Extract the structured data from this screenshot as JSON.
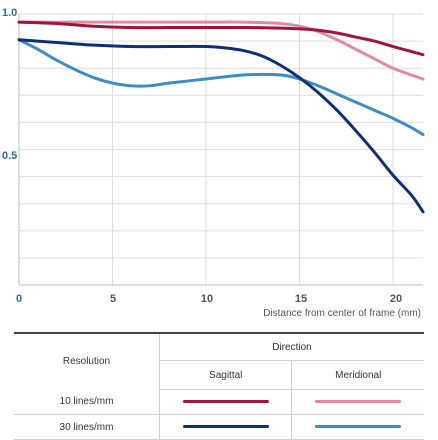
{
  "chart_data": {
    "type": "line",
    "title": "",
    "xlabel": "Distance from center of frame (mm)",
    "ylabel": "",
    "xlim": [
      0,
      21.6
    ],
    "ylim": [
      0,
      1.0
    ],
    "x_ticks": [
      "0",
      "5",
      "10",
      "15",
      "20"
    ],
    "y_ticks": [
      "1.0",
      "0.5"
    ],
    "grid": true,
    "series": [
      {
        "key": "sagittal_10",
        "color": "#a3143c",
        "points": [
          [
            0,
            0.97
          ],
          [
            2,
            0.965
          ],
          [
            4,
            0.955
          ],
          [
            6,
            0.95
          ],
          [
            8,
            0.95
          ],
          [
            10,
            0.95
          ],
          [
            12,
            0.95
          ],
          [
            14,
            0.948
          ],
          [
            15,
            0.945
          ],
          [
            16,
            0.94
          ],
          [
            17,
            0.93
          ],
          [
            18,
            0.915
          ],
          [
            19,
            0.9
          ],
          [
            20,
            0.88
          ],
          [
            21.6,
            0.85
          ]
        ]
      },
      {
        "key": "meridional_10",
        "color": "#e08aa3",
        "points": [
          [
            0,
            0.97
          ],
          [
            2,
            0.97
          ],
          [
            4,
            0.97
          ],
          [
            6,
            0.97
          ],
          [
            8,
            0.97
          ],
          [
            10,
            0.97
          ],
          [
            12,
            0.97
          ],
          [
            14,
            0.965
          ],
          [
            15,
            0.955
          ],
          [
            16,
            0.935
          ],
          [
            17,
            0.905
          ],
          [
            18,
            0.87
          ],
          [
            19,
            0.835
          ],
          [
            20,
            0.8
          ],
          [
            21.6,
            0.76
          ]
        ]
      },
      {
        "key": "sagittal_30",
        "color": "#0e2f78",
        "points": [
          [
            0,
            0.905
          ],
          [
            2,
            0.895
          ],
          [
            4,
            0.885
          ],
          [
            6,
            0.88
          ],
          [
            8,
            0.88
          ],
          [
            10,
            0.88
          ],
          [
            11,
            0.875
          ],
          [
            12,
            0.865
          ],
          [
            13,
            0.845
          ],
          [
            14,
            0.81
          ],
          [
            15,
            0.765
          ],
          [
            16,
            0.71
          ],
          [
            17,
            0.645
          ],
          [
            18,
            0.57
          ],
          [
            19,
            0.49
          ],
          [
            20,
            0.405
          ],
          [
            21,
            0.33
          ],
          [
            21.6,
            0.27
          ]
        ]
      },
      {
        "key": "meridional_30",
        "color": "#3d8dc0",
        "points": [
          [
            0,
            0.905
          ],
          [
            1,
            0.87
          ],
          [
            2,
            0.83
          ],
          [
            3,
            0.795
          ],
          [
            4,
            0.765
          ],
          [
            5,
            0.745
          ],
          [
            6,
            0.735
          ],
          [
            7,
            0.735
          ],
          [
            8,
            0.745
          ],
          [
            10,
            0.76
          ],
          [
            12,
            0.775
          ],
          [
            14,
            0.775
          ],
          [
            15,
            0.76
          ],
          [
            16,
            0.735
          ],
          [
            17,
            0.705
          ],
          [
            18,
            0.675
          ],
          [
            19,
            0.645
          ],
          [
            20,
            0.615
          ],
          [
            21,
            0.58
          ],
          [
            21.6,
            0.555
          ]
        ]
      }
    ]
  },
  "legend": {
    "resolution_header": "Resolution",
    "direction_header": "Direction",
    "sagittal_label": "Sagittal",
    "meridional_label": "Meridional",
    "rows": [
      {
        "label": "10 lines/mm",
        "sagittal_color": "#a3143c",
        "meridional_color": "#e08aa3"
      },
      {
        "label": "30 lines/mm",
        "sagittal_color": "#0e2f78",
        "meridional_color": "#3d8dc0"
      }
    ]
  }
}
